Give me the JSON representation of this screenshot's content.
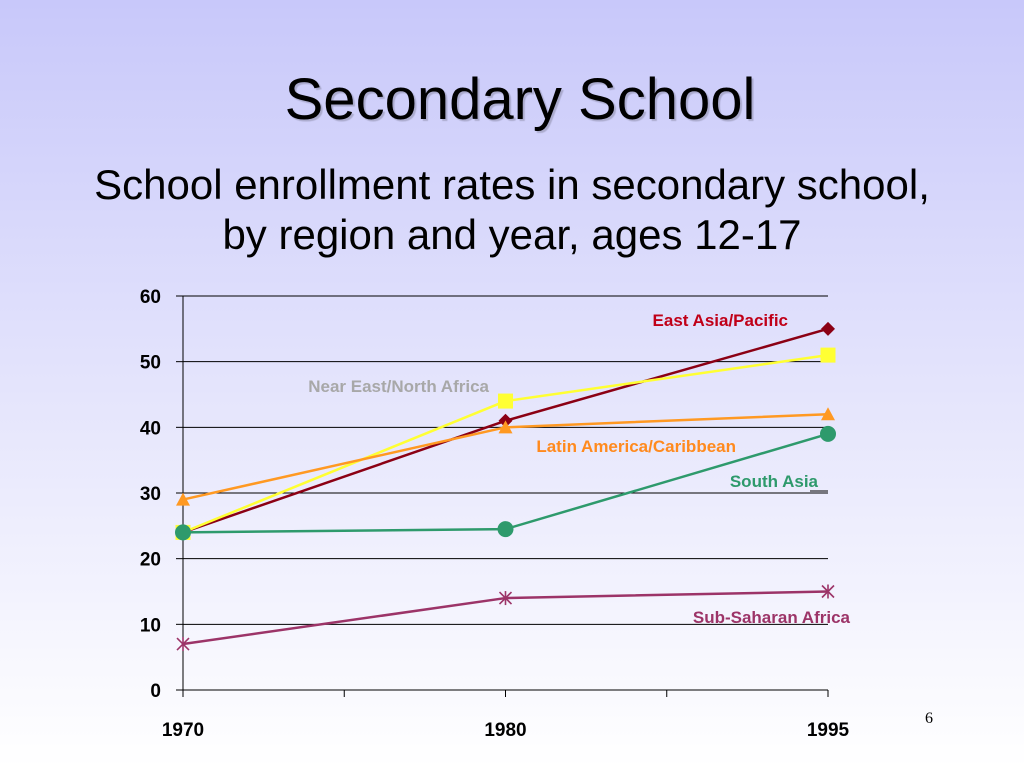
{
  "slide": {
    "title": "Secondary School",
    "subtitle_line1": "School enrollment rates in secondary school,",
    "subtitle_line2": "by region and year, ages 12-17",
    "page_number": "6"
  },
  "chart_data": {
    "type": "line",
    "x": [
      "1970",
      "1980",
      "1995"
    ],
    "ylim": [
      0,
      60
    ],
    "yticks": [
      0,
      10,
      20,
      30,
      40,
      50,
      60
    ],
    "grid": true,
    "legend": "inline labels",
    "series": [
      {
        "name": "East Asia/Pacific",
        "values": [
          24,
          41,
          55
        ],
        "color": "#8b0014",
        "marker": "diamond"
      },
      {
        "name": "Near East/North Africa",
        "values": [
          24,
          44,
          51
        ],
        "color": "#ffff33",
        "marker": "square"
      },
      {
        "name": "Latin America/Caribbean",
        "values": [
          29,
          40,
          42
        ],
        "color": "#ff9922",
        "marker": "triangle"
      },
      {
        "name": "South Asia",
        "values": [
          24,
          24.5,
          39
        ],
        "color": "#2e9a6c",
        "marker": "circle"
      },
      {
        "name": "Sub-Saharan Africa",
        "values": [
          7,
          14,
          15
        ],
        "color": "#9c3468",
        "marker": "asterisk"
      }
    ],
    "label_colors": {
      "East Asia/Pacific": "#c00018",
      "Near East/North Africa": "#a8a8a8",
      "Latin America/Caribbean": "#ff8a1e",
      "South Asia": "#2e9a6c",
      "Sub-Saharan Africa": "#9c3468"
    }
  }
}
